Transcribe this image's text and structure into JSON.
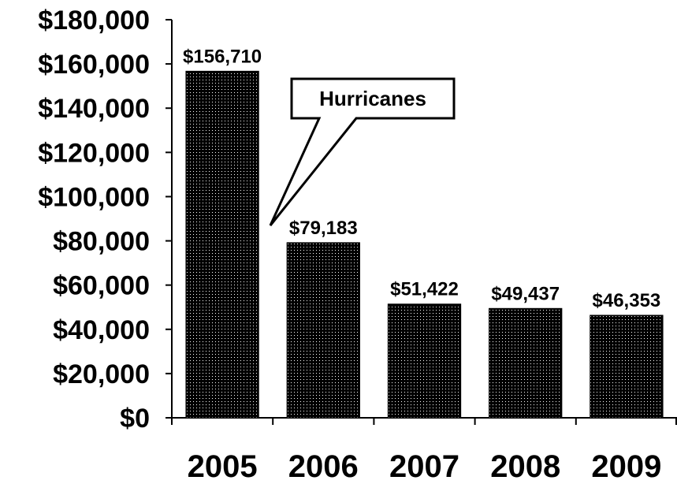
{
  "chart_data": {
    "type": "bar",
    "categories": [
      "2005",
      "2006",
      "2007",
      "2008",
      "2009"
    ],
    "values": [
      156710,
      79183,
      51422,
      49437,
      46353
    ],
    "data_labels": [
      "$156,710",
      "$79,183",
      "$51,422",
      "$49,437",
      "$46,353"
    ],
    "ylim": [
      0,
      180000
    ],
    "yticks": [
      0,
      20000,
      40000,
      60000,
      80000,
      100000,
      120000,
      140000,
      160000,
      180000
    ],
    "ytick_labels": [
      "$0",
      "$20,000",
      "$40,000",
      "$60,000",
      "$80,000",
      "$100,000",
      "$120,000",
      "$140,000",
      "$160,000",
      "$180,000"
    ],
    "title": "",
    "xlabel": "",
    "ylabel": "",
    "grid": false,
    "bar_fill": "dotted black pattern",
    "annotation": {
      "text": "Hurricanes",
      "points_to": [
        "2005",
        "2006"
      ]
    }
  }
}
